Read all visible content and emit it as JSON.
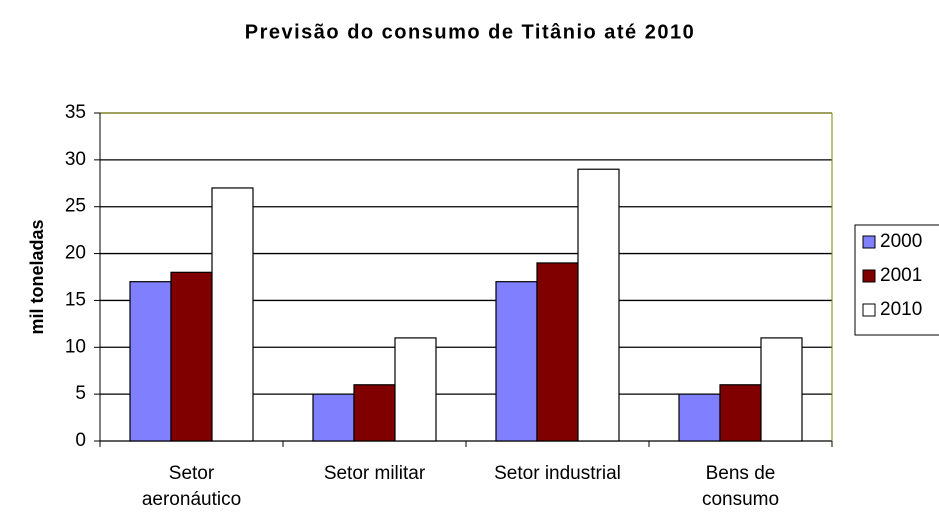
{
  "chart_data": {
    "type": "bar",
    "title": "Previsão do consumo de Titânio até 2010",
    "y_label": "mil toneladas",
    "categories": [
      "Setor\naeronáutico",
      "Setor militar",
      "Setor industrial",
      "Bens de\nconsumo"
    ],
    "series": [
      {
        "name": "2000",
        "color": "#8080ff",
        "values": [
          17,
          5,
          17,
          5
        ]
      },
      {
        "name": "2001",
        "color": "#800000",
        "values": [
          18,
          6,
          19,
          6
        ]
      },
      {
        "name": "2010",
        "color": "#ffffff",
        "values": [
          27,
          11,
          29,
          11
        ]
      }
    ],
    "ylim": [
      0,
      35
    ],
    "yticks": [
      0,
      5,
      10,
      15,
      20,
      25,
      30,
      35
    ],
    "grid": true,
    "legend": "right"
  }
}
